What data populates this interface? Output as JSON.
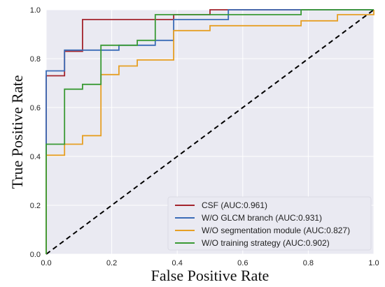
{
  "chart_data": {
    "type": "line",
    "title": "",
    "xlabel": "False Positive Rate",
    "ylabel": "True Positive Rate",
    "xlim": [
      0,
      1
    ],
    "ylim": [
      0,
      1
    ],
    "xticks": [
      "0.0",
      "0.2",
      "0.4",
      "0.6",
      "0.8",
      "1.0"
    ],
    "yticks": [
      "0.0",
      "0.2",
      "0.4",
      "0.6",
      "0.8",
      "1.0"
    ],
    "grid": true,
    "legend_position": "bottom-right",
    "diagonal": {
      "color": "#000000",
      "style": "dashed"
    },
    "series": [
      {
        "name": "CSF (AUC:0.961)",
        "color": "#a3242d",
        "x": [
          0,
          0,
          0.056,
          0.056,
          0.111,
          0.111,
          0.389,
          0.389,
          0.5,
          0.5,
          1
        ],
        "y": [
          0,
          0.73,
          0.73,
          0.83,
          0.83,
          0.96,
          0.96,
          0.98,
          0.98,
          1.0,
          1.0
        ]
      },
      {
        "name": "W/O GLCM branch (AUC:0.931)",
        "color": "#3b6cb7",
        "x": [
          0,
          0,
          0.056,
          0.056,
          0.222,
          0.222,
          0.333,
          0.333,
          0.389,
          0.389,
          0.556,
          0.556,
          1
        ],
        "y": [
          0,
          0.75,
          0.75,
          0.835,
          0.835,
          0.855,
          0.855,
          0.875,
          0.875,
          0.96,
          0.96,
          1.0,
          1.0
        ]
      },
      {
        "name": "W/O segmentation module (AUC:0.827)",
        "color": "#e69f24",
        "x": [
          0,
          0,
          0.056,
          0.056,
          0.111,
          0.111,
          0.167,
          0.167,
          0.222,
          0.222,
          0.278,
          0.278,
          0.389,
          0.389,
          0.5,
          0.5,
          0.778,
          0.778,
          0.889,
          0.889,
          1,
          1
        ],
        "y": [
          0,
          0.405,
          0.405,
          0.45,
          0.45,
          0.485,
          0.485,
          0.735,
          0.735,
          0.77,
          0.77,
          0.795,
          0.795,
          0.915,
          0.915,
          0.935,
          0.935,
          0.955,
          0.955,
          0.98,
          0.98,
          1.0
        ]
      },
      {
        "name": "W/O training strategy (AUC:0.902)",
        "color": "#3a9a35",
        "x": [
          0,
          0,
          0.056,
          0.056,
          0.111,
          0.111,
          0.167,
          0.167,
          0.278,
          0.278,
          0.333,
          0.333,
          0.778,
          0.778,
          1
        ],
        "y": [
          0,
          0.45,
          0.45,
          0.675,
          0.675,
          0.695,
          0.695,
          0.855,
          0.855,
          0.875,
          0.875,
          0.98,
          0.98,
          1.0,
          1.0
        ]
      }
    ]
  }
}
